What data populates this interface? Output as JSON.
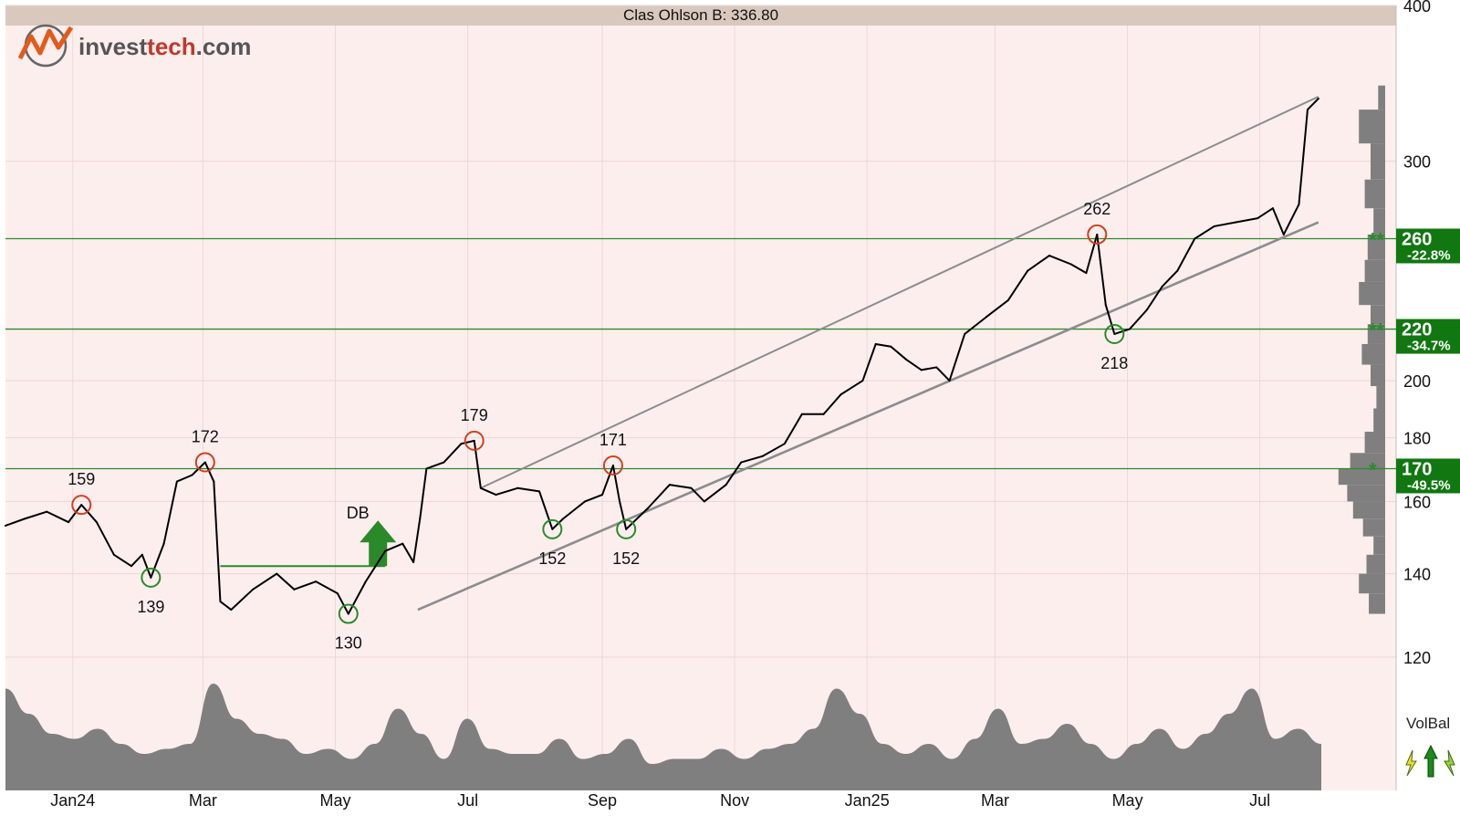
{
  "header": {
    "title": "Clas Ohlson B: 336.80"
  },
  "logo": {
    "brand_dark": "invest",
    "brand_red": "tech",
    "brand_suffix": ".com"
  },
  "indicator": {
    "label": "VolBal"
  },
  "colors": {
    "background": "#fdeeee",
    "header_band": "#d9c8bd",
    "price_line": "#000000",
    "price_up": "#cc2200",
    "price_down": "#2a8a2a",
    "support_line": "#2a8a2a",
    "trend_channel": "#8c8c8c",
    "volume_fill": "#7f7f7f",
    "top_circle": "#d04020",
    "bottom_circle": "#2a8a2a",
    "level_badge": "#117711"
  },
  "chart_data": {
    "type": "line",
    "title": "Clas Ohlson B: 336.80",
    "y_scale": "log",
    "ylim": [
      118,
      400
    ],
    "y_ticks": [
      120,
      140,
      160,
      180,
      200,
      300,
      400
    ],
    "x_range": [
      "2023-12-01",
      "2025-07-31"
    ],
    "x_ticks": [
      {
        "date": "2024-01-01",
        "label": "Jan24"
      },
      {
        "date": "2024-03-01",
        "label": "Mar"
      },
      {
        "date": "2024-05-01",
        "label": "May"
      },
      {
        "date": "2024-07-01",
        "label": "Jul"
      },
      {
        "date": "2024-09-01",
        "label": "Sep"
      },
      {
        "date": "2024-11-01",
        "label": "Nov"
      },
      {
        "date": "2025-01-01",
        "label": "Jan25"
      },
      {
        "date": "2025-03-01",
        "label": "Mar"
      },
      {
        "date": "2025-05-01",
        "label": "May"
      },
      {
        "date": "2025-07-01",
        "label": "Jul"
      }
    ],
    "price_series": [
      [
        "2023-12-01",
        153
      ],
      [
        "2023-12-10",
        155
      ],
      [
        "2023-12-20",
        157
      ],
      [
        "2023-12-30",
        154
      ],
      [
        "2024-01-05",
        159
      ],
      [
        "2024-01-12",
        154
      ],
      [
        "2024-01-20",
        145
      ],
      [
        "2024-01-28",
        142
      ],
      [
        "2024-02-02",
        145
      ],
      [
        "2024-02-06",
        139
      ],
      [
        "2024-02-12",
        148
      ],
      [
        "2024-02-18",
        166
      ],
      [
        "2024-02-25",
        168
      ],
      [
        "2024-03-02",
        172
      ],
      [
        "2024-03-06",
        166
      ],
      [
        "2024-03-09",
        133
      ],
      [
        "2024-03-14",
        131
      ],
      [
        "2024-03-24",
        136
      ],
      [
        "2024-04-04",
        140
      ],
      [
        "2024-04-12",
        136
      ],
      [
        "2024-04-22",
        138
      ],
      [
        "2024-05-02",
        135
      ],
      [
        "2024-05-07",
        130
      ],
      [
        "2024-05-15",
        138
      ],
      [
        "2024-05-24",
        146
      ],
      [
        "2024-06-01",
        148
      ],
      [
        "2024-06-06",
        143
      ],
      [
        "2024-06-09",
        155
      ],
      [
        "2024-06-12",
        170
      ],
      [
        "2024-06-20",
        172
      ],
      [
        "2024-06-28",
        178
      ],
      [
        "2024-07-04",
        179
      ],
      [
        "2024-07-07",
        164
      ],
      [
        "2024-07-14",
        162
      ],
      [
        "2024-07-24",
        164
      ],
      [
        "2024-08-03",
        163
      ],
      [
        "2024-08-09",
        152
      ],
      [
        "2024-08-14",
        155
      ],
      [
        "2024-08-24",
        160
      ],
      [
        "2024-09-01",
        162
      ],
      [
        "2024-09-06",
        171
      ],
      [
        "2024-09-09",
        160
      ],
      [
        "2024-09-12",
        152
      ],
      [
        "2024-09-22",
        158
      ],
      [
        "2024-10-02",
        165
      ],
      [
        "2024-10-12",
        164
      ],
      [
        "2024-10-18",
        160
      ],
      [
        "2024-10-28",
        165
      ],
      [
        "2024-11-04",
        172
      ],
      [
        "2024-11-14",
        174
      ],
      [
        "2024-11-24",
        178
      ],
      [
        "2024-12-02",
        188
      ],
      [
        "2024-12-12",
        188
      ],
      [
        "2024-12-20",
        195
      ],
      [
        "2024-12-30",
        200
      ],
      [
        "2025-01-05",
        214
      ],
      [
        "2025-01-12",
        213
      ],
      [
        "2025-01-19",
        208
      ],
      [
        "2025-01-26",
        204
      ],
      [
        "2025-02-02",
        205
      ],
      [
        "2025-02-08",
        200
      ],
      [
        "2025-02-15",
        218
      ],
      [
        "2025-02-25",
        225
      ],
      [
        "2025-03-07",
        232
      ],
      [
        "2025-03-16",
        245
      ],
      [
        "2025-03-26",
        252
      ],
      [
        "2025-04-05",
        248
      ],
      [
        "2025-04-12",
        244
      ],
      [
        "2025-04-17",
        262
      ],
      [
        "2025-04-21",
        230
      ],
      [
        "2025-04-25",
        218
      ],
      [
        "2025-05-02",
        220
      ],
      [
        "2025-05-10",
        228
      ],
      [
        "2025-05-17",
        238
      ],
      [
        "2025-05-24",
        245
      ],
      [
        "2025-06-01",
        260
      ],
      [
        "2025-06-10",
        266
      ],
      [
        "2025-06-20",
        268
      ],
      [
        "2025-06-30",
        270
      ],
      [
        "2025-07-07",
        275
      ],
      [
        "2025-07-12",
        262
      ],
      [
        "2025-07-19",
        277
      ],
      [
        "2025-07-23",
        330
      ],
      [
        "2025-07-28",
        336.8
      ]
    ],
    "trend_channel": {
      "upper": [
        [
          "2024-07-07",
          164
        ],
        [
          "2025-07-28",
          338
        ]
      ],
      "lower": [
        [
          "2024-06-08",
          131
        ],
        [
          "2025-07-28",
          268
        ]
      ]
    },
    "support_levels": [
      {
        "value": 260,
        "label": "260",
        "pct": "-22.8%"
      },
      {
        "value": 220,
        "label": "220",
        "pct": "-34.7%"
      },
      {
        "value": 170,
        "label": "170",
        "pct": "-49.5%"
      }
    ],
    "annotations": {
      "tops": [
        {
          "date": "2024-01-05",
          "value": 159,
          "label": "159"
        },
        {
          "date": "2024-03-02",
          "value": 172,
          "label": "172"
        },
        {
          "date": "2024-07-04",
          "value": 179,
          "label": "179"
        },
        {
          "date": "2024-09-06",
          "value": 171,
          "label": "171"
        },
        {
          "date": "2025-04-17",
          "value": 262,
          "label": "262"
        }
      ],
      "bottoms": [
        {
          "date": "2024-02-06",
          "value": 139,
          "label": "139"
        },
        {
          "date": "2024-05-07",
          "value": 130,
          "label": "130"
        },
        {
          "date": "2024-08-09",
          "value": 152,
          "label": "152"
        },
        {
          "date": "2024-09-12",
          "value": 152,
          "label": "152"
        },
        {
          "date": "2025-04-25",
          "value": 218,
          "label": "218"
        }
      ],
      "pattern": {
        "label": "DB",
        "neckline": 142,
        "start": "2024-03-09",
        "end": "2024-05-24"
      }
    },
    "volume_balance": [
      0.85,
      0.6,
      0.4,
      0.35,
      0.45,
      0.3,
      0.2,
      0.25,
      0.3,
      0.9,
      0.55,
      0.4,
      0.35,
      0.2,
      0.25,
      0.15,
      0.3,
      0.65,
      0.4,
      0.15,
      0.55,
      0.25,
      0.2,
      0.2,
      0.35,
      0.15,
      0.2,
      0.35,
      0.1,
      0.15,
      0.15,
      0.25,
      0.15,
      0.25,
      0.3,
      0.45,
      0.85,
      0.6,
      0.3,
      0.2,
      0.3,
      0.15,
      0.35,
      0.65,
      0.3,
      0.35,
      0.5,
      0.3,
      0.15,
      0.3,
      0.45,
      0.25,
      0.4,
      0.6,
      0.85,
      0.35,
      0.45,
      0.3
    ],
    "volume_profile": [
      {
        "low": 130,
        "high": 135,
        "v": 0.28
      },
      {
        "low": 135,
        "high": 140,
        "v": 0.45
      },
      {
        "low": 140,
        "high": 145,
        "v": 0.32
      },
      {
        "low": 145,
        "high": 150,
        "v": 0.2
      },
      {
        "low": 150,
        "high": 155,
        "v": 0.38
      },
      {
        "low": 155,
        "high": 160,
        "v": 0.55
      },
      {
        "low": 160,
        "high": 165,
        "v": 0.65
      },
      {
        "low": 165,
        "high": 170,
        "v": 0.8
      },
      {
        "low": 170,
        "high": 175,
        "v": 0.6
      },
      {
        "low": 175,
        "high": 182,
        "v": 0.35
      },
      {
        "low": 182,
        "high": 190,
        "v": 0.2
      },
      {
        "low": 190,
        "high": 198,
        "v": 0.15
      },
      {
        "low": 198,
        "high": 206,
        "v": 0.25
      },
      {
        "low": 206,
        "high": 214,
        "v": 0.4
      },
      {
        "low": 214,
        "high": 222,
        "v": 0.3
      },
      {
        "low": 222,
        "high": 230,
        "v": 0.25
      },
      {
        "low": 230,
        "high": 240,
        "v": 0.45
      },
      {
        "low": 240,
        "high": 250,
        "v": 0.35
      },
      {
        "low": 250,
        "high": 262,
        "v": 0.3
      },
      {
        "low": 262,
        "high": 275,
        "v": 0.2
      },
      {
        "low": 275,
        "high": 290,
        "v": 0.35
      },
      {
        "low": 290,
        "high": 310,
        "v": 0.25
      },
      {
        "low": 310,
        "high": 330,
        "v": 0.45
      },
      {
        "low": 330,
        "high": 345,
        "v": 0.12
      }
    ]
  }
}
